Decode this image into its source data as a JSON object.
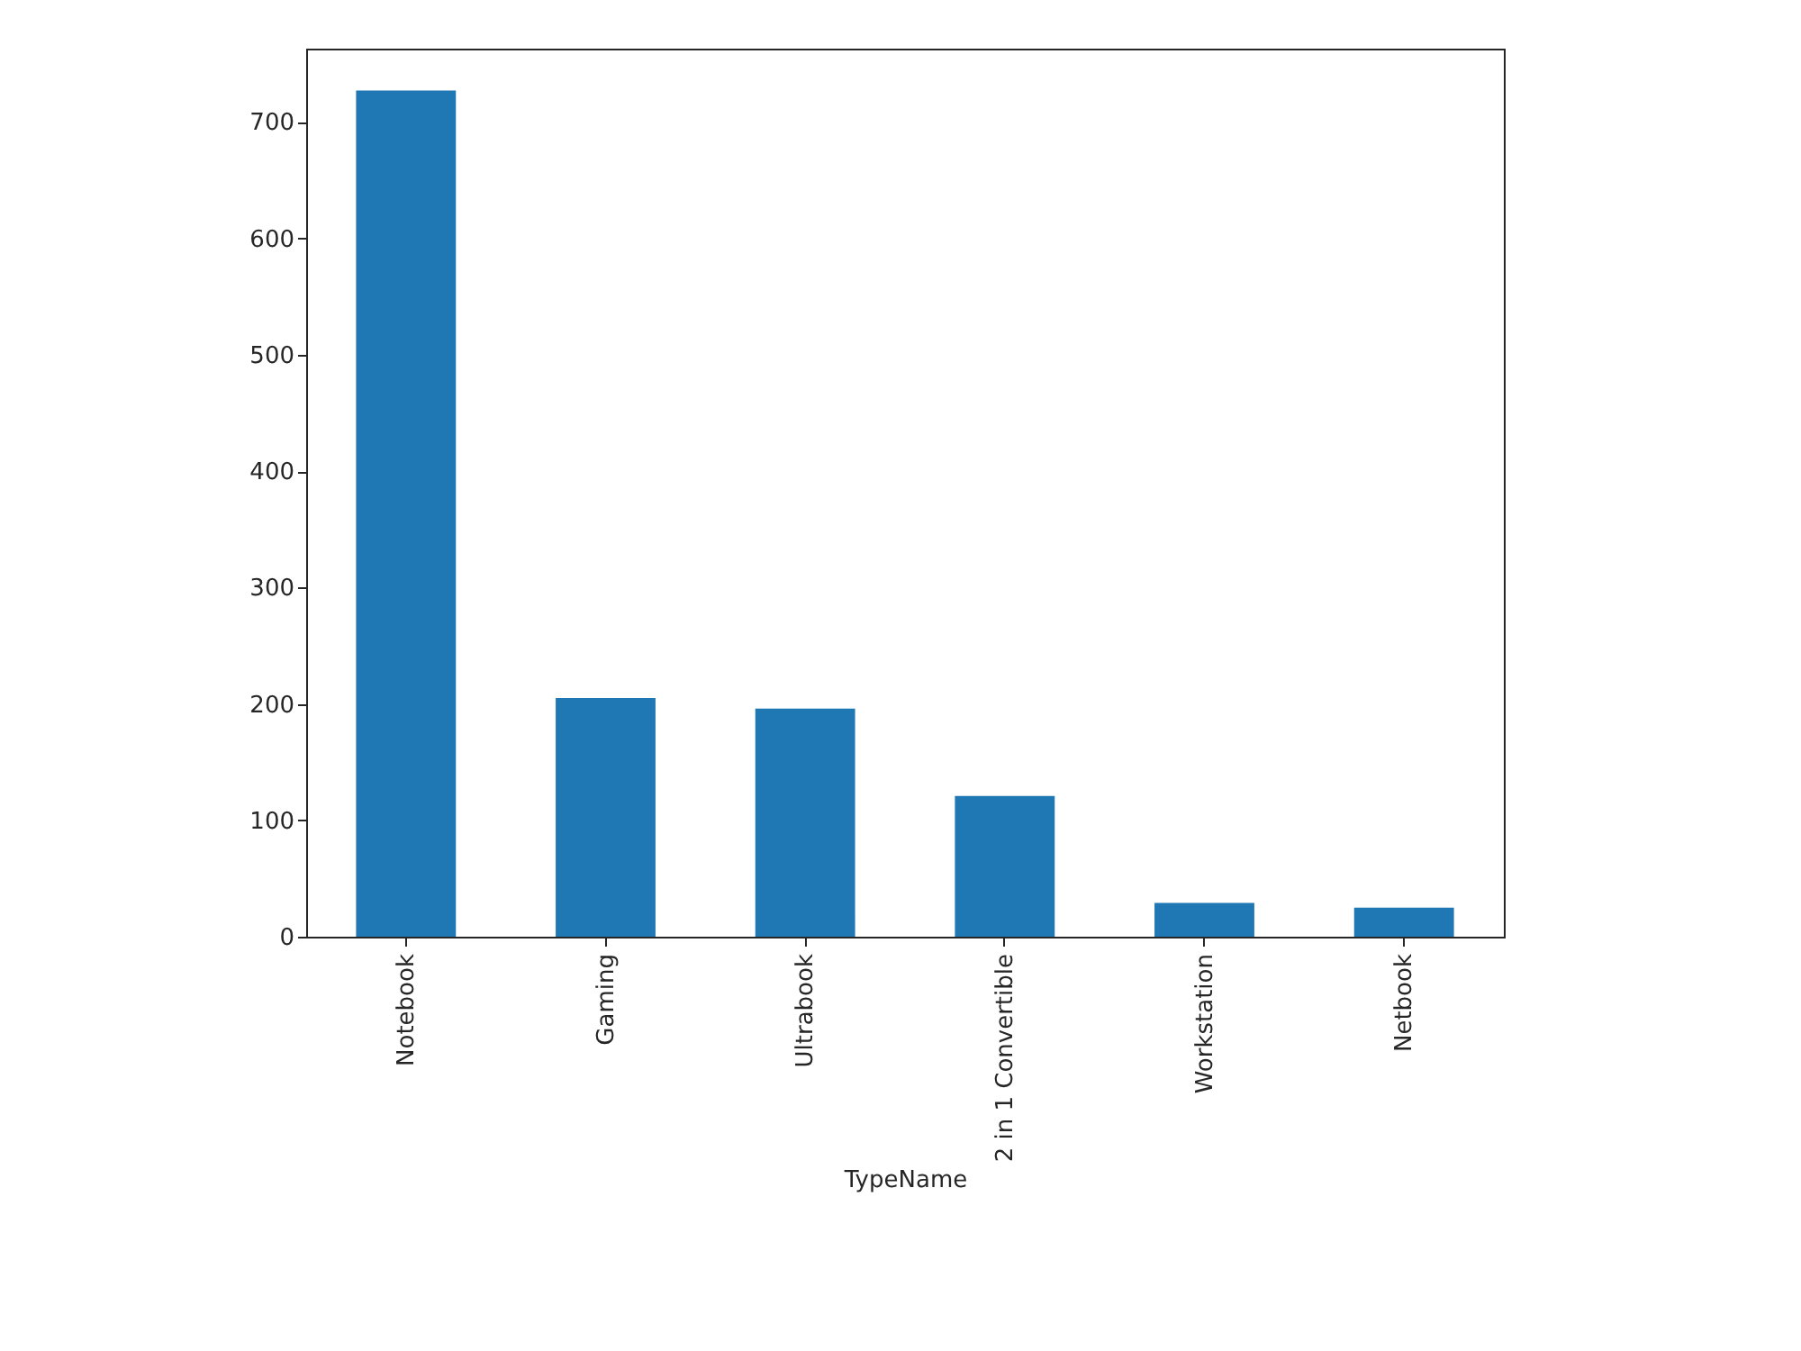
{
  "chart_data": {
    "type": "bar",
    "xlabel": "TypeName",
    "categories": [
      "Notebook",
      "Gaming",
      "Ultrabook",
      "2 in 1 Convertible",
      "Workstation",
      "Netbook"
    ],
    "values": [
      727,
      205,
      196,
      121,
      29,
      25
    ],
    "color": "#1f77b4",
    "ylim": [
      0,
      763
    ],
    "yticks": [
      0,
      100,
      200,
      300,
      400,
      500,
      600,
      700
    ],
    "grid": false
  }
}
